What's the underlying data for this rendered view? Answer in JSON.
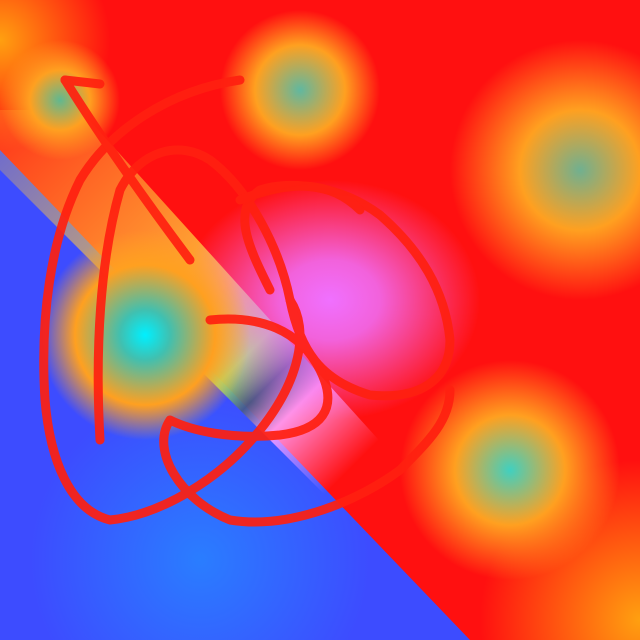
{
  "image": {
    "description_tags": [
      "abstract-gradient",
      "red-scribble-lines"
    ],
    "colors": {
      "red": "#ff1010",
      "orange": "#ffa020",
      "blue": "#3d4cff",
      "light_blue": "#2a7dff",
      "cyan": "#00f0ff",
      "magenta": "#f070ff",
      "scribble": "#ff2010"
    }
  }
}
